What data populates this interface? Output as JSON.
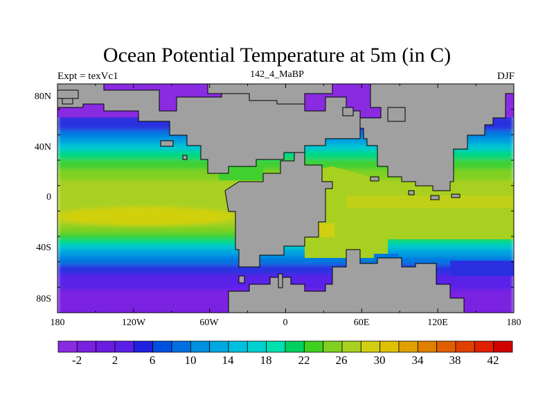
{
  "title": "Ocean Potential Temperature at 5m (in C)",
  "left_string": "Expt = texVc1",
  "center_string": "142_4_MaBP",
  "right_string": "DJF",
  "colors": {
    "land": "#a0a0a0",
    "frame": "#000000"
  },
  "chart_data": {
    "type": "heatmap",
    "title": "Ocean Potential Temperature at 5m (in C)",
    "units": "C",
    "x_ticks": [
      "180",
      "120W",
      "60W",
      "0",
      "60E",
      "120E",
      "180"
    ],
    "y_ticks": [
      "80N",
      "40N",
      "0",
      "40S",
      "80S"
    ],
    "xlim": [
      -180,
      180
    ],
    "ylim": [
      -90,
      90
    ],
    "colorbar": {
      "labels": [
        "-2",
        "2",
        "6",
        "10",
        "14",
        "18",
        "22",
        "26",
        "30",
        "34",
        "38",
        "42"
      ],
      "colors": [
        "#8a2be2",
        "#7a20e0",
        "#6a1ce0",
        "#5a20e8",
        "#2020e0",
        "#0050e0",
        "#0070e0",
        "#0090e0",
        "#00a8e0",
        "#00c0e0",
        "#00d0d0",
        "#00e0b0",
        "#00d060",
        "#40d020",
        "#80d020",
        "#a8d020",
        "#d0d010",
        "#e0c000",
        "#e0a000",
        "#e08000",
        "#e06000",
        "#e04000",
        "#e02000",
        "#d00000"
      ]
    }
  }
}
